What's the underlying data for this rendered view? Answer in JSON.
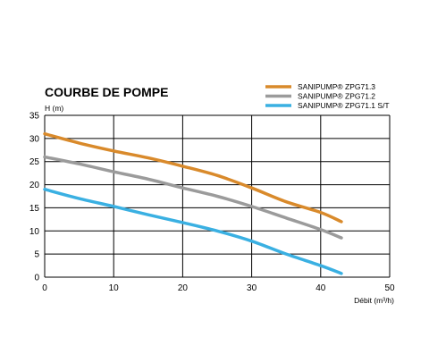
{
  "chart_data": {
    "type": "line",
    "title": "COURBE DE POMPE",
    "ylabel": "H (m)",
    "xlabel": "Débit (m³/h)",
    "xlim": [
      0,
      50
    ],
    "ylim": [
      0,
      35
    ],
    "xticks": [
      0,
      10,
      20,
      30,
      40,
      50
    ],
    "yticks": [
      0,
      5,
      10,
      15,
      20,
      25,
      30,
      35
    ],
    "grid": true,
    "legend_position": "top-right",
    "series": [
      {
        "name": "SANIPUMP® ZPG71.3",
        "color": "#d98a2b",
        "x": [
          0,
          5,
          10,
          15,
          20,
          25,
          30,
          35,
          40,
          43
        ],
        "y": [
          31,
          29,
          27.3,
          25.8,
          24,
          22,
          19.3,
          16.3,
          14,
          12
        ]
      },
      {
        "name": "SANIPUMP® ZPG71.2",
        "color": "#9b9b9b",
        "x": [
          0,
          5,
          10,
          15,
          20,
          25,
          30,
          35,
          40,
          43
        ],
        "y": [
          26,
          24.5,
          22.8,
          21.2,
          19.3,
          17.5,
          15.3,
          12.8,
          10.3,
          8.5
        ]
      },
      {
        "name": "SANIPUMP® ZPG71.1 S/T",
        "color": "#3ab0e2",
        "x": [
          0,
          5,
          10,
          15,
          20,
          25,
          30,
          35,
          40,
          43
        ],
        "y": [
          19,
          17,
          15.3,
          13.5,
          11.8,
          10,
          7.8,
          5,
          2.5,
          0.8
        ]
      }
    ]
  }
}
